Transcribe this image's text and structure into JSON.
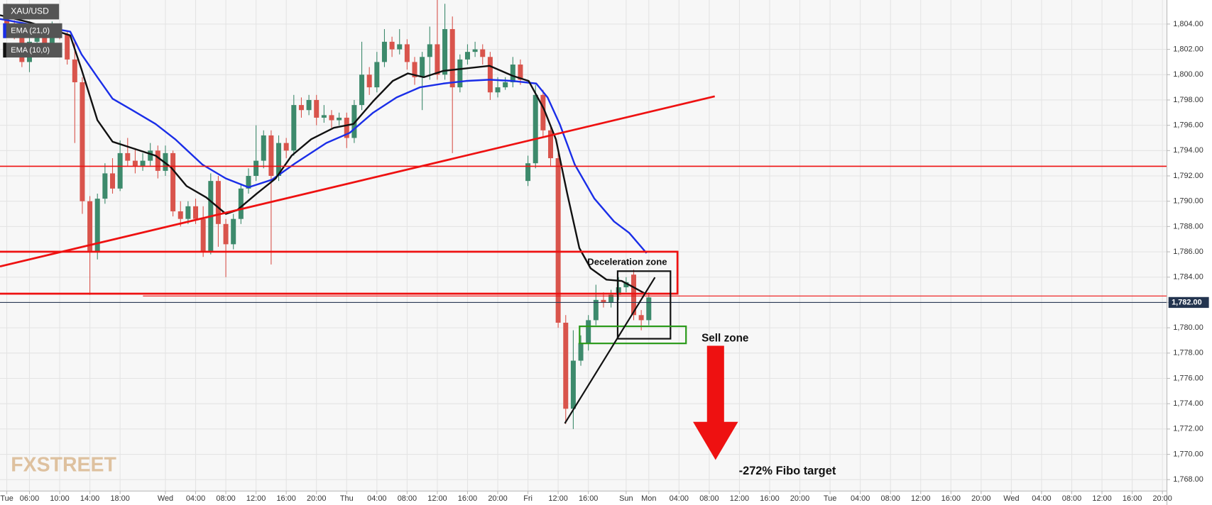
{
  "chart_data": {
    "type": "candlestick",
    "symbol": "XAU/USD",
    "watermark": "FXSTREET",
    "grid": true,
    "up_color": "#3d8a6c",
    "down_color": "#d9544c",
    "x": [
      3,
      4,
      5,
      6,
      7,
      8,
      9,
      10,
      11,
      12,
      13,
      14,
      15,
      16,
      17,
      18,
      19,
      20,
      21,
      22,
      23,
      24,
      25,
      26,
      27,
      28,
      29,
      30,
      31,
      32,
      33,
      34,
      35,
      36,
      37,
      38,
      39,
      40,
      41,
      42,
      43,
      44,
      45,
      46,
      47,
      48,
      49,
      50,
      51,
      52,
      53,
      54,
      55,
      56,
      57,
      58,
      59,
      60,
      61,
      62,
      63,
      64,
      65,
      66,
      67,
      68,
      69,
      70,
      71,
      72,
      73,
      74,
      75,
      76,
      77,
      78,
      79,
      80,
      81,
      82,
      83,
      84,
      85,
      86,
      87,
      88
    ],
    "open": [
      1804.5,
      1803.6,
      1803.2,
      1801.0,
      1802.6,
      1803.6,
      1802.2,
      1803.6,
      1803.2,
      1801.2,
      1799.4,
      1790.0,
      1786.0,
      1790.2,
      1792.2,
      1791.0,
      1793.8,
      1793.2,
      1792.8,
      1793.2,
      1794.0,
      1792.4,
      1793.8,
      1789.2,
      1788.6,
      1789.6,
      1788.6,
      1786.0,
      1791.6,
      1788.2,
      1786.6,
      1788.6,
      1791.0,
      1792.0,
      1793.2,
      1795.2,
      1792.0,
      1794.6,
      1794.0,
      1797.6,
      1797.2,
      1798.0,
      1796.6,
      1796.8,
      1796.4,
      1796.6,
      1795.0,
      1797.6,
      1800.0,
      1799.0,
      1801.0,
      1802.6,
      1802.0,
      1802.4,
      1801.0,
      1799.8,
      1801.4,
      1802.4,
      1800.0,
      1803.6,
      1799.0,
      1801.2,
      1801.8,
      1802.0,
      1801.4,
      1798.6,
      1799.0,
      1799.4,
      1800.8,
      1791.6,
      1793.0,
      1798.4,
      1795.6,
      1793.4,
      1780.4,
      1773.6,
      1777.4,
      1778.8,
      1780.6,
      1782.2,
      1782.0,
      1782.6,
      1783.2,
      1784.2,
      1781.0,
      1780.6
    ],
    "high": [
      1805.6,
      1804.3,
      1803.6,
      1803.0,
      1804.0,
      1803.9,
      1804.2,
      1804.0,
      1803.5,
      1802.6,
      1799.8,
      1790.4,
      1790.6,
      1793.0,
      1793.4,
      1794.8,
      1795.0,
      1794.2,
      1793.8,
      1794.6,
      1794.4,
      1794.4,
      1794.0,
      1790.0,
      1790.0,
      1790.2,
      1789.6,
      1792.2,
      1792.0,
      1788.6,
      1789.0,
      1791.4,
      1792.6,
      1796.0,
      1795.6,
      1795.6,
      1795.2,
      1795.0,
      1798.4,
      1798.2,
      1798.4,
      1798.4,
      1797.6,
      1797.2,
      1797.0,
      1797.0,
      1798.0,
      1802.6,
      1800.6,
      1801.8,
      1803.6,
      1803.0,
      1803.6,
      1802.8,
      1801.4,
      1801.8,
      1803.8,
      1806.0,
      1805.6,
      1804.6,
      1801.6,
      1802.4,
      1802.6,
      1802.4,
      1801.8,
      1799.8,
      1799.8,
      1801.4,
      1801.2,
      1793.6,
      1799.2,
      1798.8,
      1796.0,
      1793.8,
      1781.0,
      1779.8,
      1779.4,
      1781.0,
      1783.4,
      1782.8,
      1783.0,
      1784.0,
      1784.0,
      1784.6,
      1781.4,
      1782.8
    ],
    "low": [
      1803.2,
      1802.8,
      1800.6,
      1800.2,
      1802.2,
      1801.8,
      1801.9,
      1802.8,
      1800.8,
      1794.6,
      1789.0,
      1782.6,
      1785.4,
      1789.8,
      1790.6,
      1790.8,
      1792.8,
      1792.2,
      1792.4,
      1792.8,
      1791.8,
      1792.0,
      1788.8,
      1788.0,
      1788.2,
      1788.2,
      1785.6,
      1785.8,
      1786.4,
      1784.0,
      1786.2,
      1788.2,
      1790.6,
      1791.6,
      1792.6,
      1785.0,
      1791.6,
      1793.4,
      1793.6,
      1796.6,
      1796.8,
      1796.0,
      1796.2,
      1795.8,
      1796.0,
      1794.2,
      1794.6,
      1797.2,
      1798.4,
      1798.6,
      1800.6,
      1801.4,
      1801.6,
      1800.4,
      1799.2,
      1797.2,
      1799.6,
      1799.6,
      1799.6,
      1793.8,
      1798.6,
      1800.8,
      1801.4,
      1800.8,
      1798.0,
      1798.2,
      1798.8,
      1799.0,
      1799.2,
      1791.2,
      1792.6,
      1795.0,
      1792.8,
      1780.0,
      1772.4,
      1772.0,
      1777.0,
      1778.2,
      1780.2,
      1781.6,
      1781.6,
      1782.2,
      1782.8,
      1780.6,
      1779.8,
      1780.2
    ],
    "close": [
      1803.6,
      1803.2,
      1801.0,
      1802.6,
      1803.6,
      1802.2,
      1803.6,
      1803.2,
      1801.2,
      1799.4,
      1790.0,
      1786.0,
      1790.2,
      1792.2,
      1791.0,
      1793.8,
      1793.2,
      1792.8,
      1793.2,
      1794.0,
      1792.4,
      1793.8,
      1789.2,
      1788.6,
      1789.6,
      1788.6,
      1786.0,
      1791.6,
      1788.2,
      1786.6,
      1788.6,
      1791.0,
      1792.0,
      1793.2,
      1795.2,
      1792.0,
      1794.6,
      1794.0,
      1797.6,
      1797.2,
      1798.0,
      1796.6,
      1796.8,
      1796.4,
      1796.6,
      1795.0,
      1797.6,
      1800.0,
      1799.0,
      1801.0,
      1802.6,
      1802.0,
      1802.4,
      1801.0,
      1799.8,
      1801.4,
      1802.4,
      1800.0,
      1803.6,
      1799.0,
      1801.2,
      1801.8,
      1802.0,
      1801.4,
      1798.6,
      1799.0,
      1799.4,
      1800.8,
      1799.6,
      1793.0,
      1798.4,
      1795.6,
      1793.4,
      1780.4,
      1773.6,
      1777.4,
      1778.8,
      1780.6,
      1782.2,
      1782.0,
      1782.6,
      1783.2,
      1783.6,
      1781.0,
      1780.6,
      1782.4
    ],
    "series": [
      {
        "name": "EMA (21,0)",
        "color": "#1a2ee8",
        "x": [
          2.1,
          11.4,
          12.9,
          15,
          17,
          19.6,
          22.7,
          25.3,
          28.9,
          32,
          35,
          38.1,
          41.2,
          45.3,
          48.4,
          51.5,
          54.6,
          57.7,
          60.8,
          63.8,
          66.9,
          70,
          73.1,
          74.6,
          76.2,
          78.2,
          80.8,
          83.4,
          85.4,
          87.7
        ],
        "values": [
          1804.4,
          1803.4,
          1801.6,
          1799.8,
          1798.1,
          1797.2,
          1796.1,
          1794.9,
          1792.9,
          1791.8,
          1791.1,
          1791.7,
          1793.0,
          1794.6,
          1795.4,
          1797.0,
          1798.2,
          1799.0,
          1799.3,
          1799.5,
          1799.6,
          1799.5,
          1799.3,
          1798.2,
          1796.1,
          1792.9,
          1790.2,
          1788.4,
          1787.5,
          1785.9
        ]
      },
      {
        "name": "EMA (10,0)",
        "color": "#111111",
        "x": [
          2.1,
          6.2,
          11.4,
          12.9,
          15,
          17,
          19.6,
          22.7,
          24.7,
          26.8,
          29.4,
          32,
          33.5,
          36.1,
          38.6,
          40.7,
          43.3,
          46.3,
          48.9,
          51.5,
          54.1,
          56.1,
          58.2,
          60.8,
          63.8,
          66.9,
          70,
          72.1,
          74.1,
          75.7,
          77.2,
          78.8,
          80.3,
          82.4,
          84.4,
          86,
          87.5
        ],
        "values": [
          1804.7,
          1804.1,
          1803.1,
          1800.4,
          1796.4,
          1794.7,
          1794.2,
          1793.6,
          1792.7,
          1791.2,
          1790.3,
          1789.0,
          1789.3,
          1790.6,
          1791.8,
          1793.6,
          1794.9,
          1795.8,
          1796.1,
          1797.9,
          1799.5,
          1800.1,
          1799.8,
          1800.3,
          1800.5,
          1800.7,
          1799.9,
          1799.5,
          1797.3,
          1794.9,
          1790.6,
          1786.3,
          1784.7,
          1783.8,
          1783.7,
          1783.2,
          1782.7
        ]
      }
    ],
    "current_price": {
      "value": 1782,
      "label": "1,782.00"
    },
    "annotations": [
      "Deceleration zone",
      "Sell zone",
      "-272% Fibo target"
    ],
    "xlim": [
      2.1,
      156.6
    ],
    "xticks": [
      {
        "value": 3,
        "label": "Tue"
      },
      {
        "value": 6,
        "label": "06:00"
      },
      {
        "value": 10,
        "label": "10:00"
      },
      {
        "value": 14,
        "label": "14:00"
      },
      {
        "value": 18,
        "label": "18:00"
      },
      {
        "value": 24,
        "label": "Wed"
      },
      {
        "value": 28,
        "label": "04:00"
      },
      {
        "value": 32,
        "label": "08:00"
      },
      {
        "value": 36,
        "label": "12:00"
      },
      {
        "value": 40,
        "label": "16:00"
      },
      {
        "value": 44,
        "label": "20:00"
      },
      {
        "value": 48,
        "label": "Thu"
      },
      {
        "value": 52,
        "label": "04:00"
      },
      {
        "value": 56,
        "label": "08:00"
      },
      {
        "value": 60,
        "label": "12:00"
      },
      {
        "value": 64,
        "label": "16:00"
      },
      {
        "value": 68,
        "label": "20:00"
      },
      {
        "value": 72,
        "label": "Fri"
      },
      {
        "value": 76,
        "label": "12:00"
      },
      {
        "value": 80,
        "label": "16:00"
      },
      {
        "value": 85,
        "label": "Sun"
      },
      {
        "value": 88,
        "label": "Mon"
      },
      {
        "value": 92,
        "label": "04:00"
      },
      {
        "value": 96,
        "label": "08:00"
      },
      {
        "value": 100,
        "label": "12:00"
      },
      {
        "value": 104,
        "label": "16:00"
      },
      {
        "value": 108,
        "label": "20:00"
      },
      {
        "value": 112,
        "label": "Tue"
      },
      {
        "value": 116,
        "label": "04:00"
      },
      {
        "value": 120,
        "label": "08:00"
      },
      {
        "value": 124,
        "label": "12:00"
      },
      {
        "value": 128,
        "label": "16:00"
      },
      {
        "value": 132,
        "label": "20:00"
      },
      {
        "value": 136,
        "label": "Wed"
      },
      {
        "value": 140,
        "label": "04:00"
      },
      {
        "value": 144,
        "label": "08:00"
      },
      {
        "value": 148,
        "label": "12:00"
      },
      {
        "value": 152,
        "label": "16:00"
      },
      {
        "value": 156,
        "label": "20:00"
      }
    ],
    "ylim": [
      1767.1,
      1805.9
    ],
    "yticks": [
      {
        "value": 1768,
        "label": "1,768.00"
      },
      {
        "value": 1770,
        "label": "1,770.00"
      },
      {
        "value": 1772,
        "label": "1,772.00"
      },
      {
        "value": 1774,
        "label": "1,774.00"
      },
      {
        "value": 1776,
        "label": "1,776.00"
      },
      {
        "value": 1778,
        "label": "1,778.00"
      },
      {
        "value": 1780,
        "label": "1,780.00"
      },
      {
        "value": 1782,
        "label": "1,782.00"
      },
      {
        "value": 1784,
        "label": "1,784.00"
      },
      {
        "value": 1786,
        "label": "1,786.00"
      },
      {
        "value": 1788,
        "label": "1,788.00"
      },
      {
        "value": 1790,
        "label": "1,790.00"
      },
      {
        "value": 1792,
        "label": "1,792.00"
      },
      {
        "value": 1794,
        "label": "1,794.00"
      },
      {
        "value": 1796,
        "label": "1,796.00"
      },
      {
        "value": 1798,
        "label": "1,798.00"
      },
      {
        "value": 1800,
        "label": "1,800.00"
      },
      {
        "value": 1802,
        "label": "1,802.00"
      },
      {
        "value": 1804,
        "label": "1,804.00"
      }
    ]
  }
}
